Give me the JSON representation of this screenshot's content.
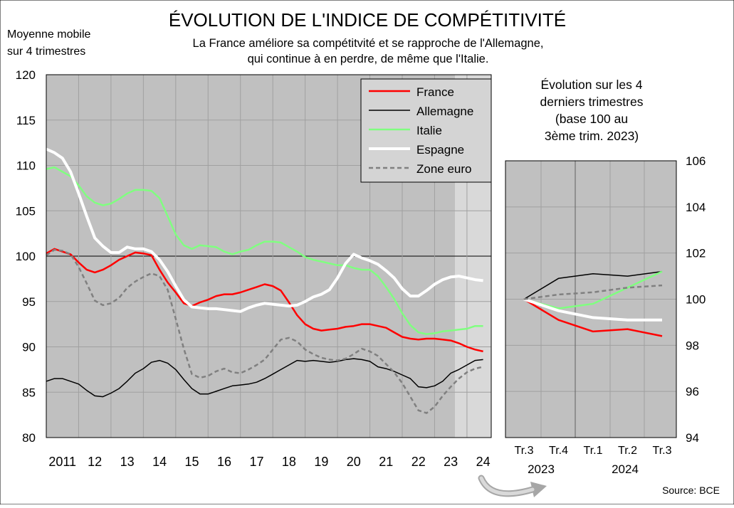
{
  "title": "ÉVOLUTION DE L'INDICE DE COMPÉTITIVITÉ",
  "subtitle_line1": "La France améliore sa compétitvité et se rapproche de l'Allemagne,",
  "subtitle_line2": "qui continue à en perdre, de même que l'Italie.",
  "source": "Source: BCE",
  "colors": {
    "france": "#ff0000",
    "allemagne": "#000000",
    "italie": "#80ff80",
    "espagne": "#ffffff",
    "zone_euro": "#808080",
    "plot_bg": "#c0c0c0",
    "shade_bg": "#d9d9d9"
  },
  "chart_data": [
    {
      "type": "line",
      "ylabel_line1": "Moyenne mobile",
      "ylabel_line2": "sur 4 trimestres",
      "ylim": [
        80,
        120
      ],
      "yticks": [
        80,
        85,
        90,
        95,
        100,
        105,
        110,
        115,
        120
      ],
      "xlim": [
        2011.0,
        2024.75
      ],
      "xtick_labels": [
        "2011",
        "12",
        "13",
        "14",
        "15",
        "16",
        "17",
        "18",
        "19",
        "20",
        "21",
        "22",
        "23",
        "24"
      ],
      "xtick_positions": [
        2011.5,
        2012.5,
        2013.5,
        2014.5,
        2015.5,
        2016.5,
        2017.5,
        2018.5,
        2019.5,
        2020.5,
        2021.5,
        2022.5,
        2023.5,
        2024.5
      ],
      "grid": true,
      "legend_position": "top-right",
      "series": [
        {
          "name": "France",
          "color": "#ff0000",
          "dash": "",
          "x": [
            2011.0,
            2011.25,
            2011.5,
            2011.75,
            2012.0,
            2012.25,
            2012.5,
            2012.75,
            2013.0,
            2013.25,
            2013.5,
            2013.75,
            2014.0,
            2014.25,
            2014.5,
            2014.75,
            2015.0,
            2015.25,
            2015.5,
            2015.75,
            2016.0,
            2016.25,
            2016.5,
            2016.75,
            2017.0,
            2017.25,
            2017.5,
            2017.75,
            2018.0,
            2018.25,
            2018.5,
            2018.75,
            2019.0,
            2019.25,
            2019.5,
            2019.75,
            2020.0,
            2020.25,
            2020.5,
            2020.75,
            2021.0,
            2021.25,
            2021.5,
            2021.75,
            2022.0,
            2022.25,
            2022.5,
            2022.75,
            2023.0,
            2023.25,
            2023.5,
            2023.75,
            2024.0,
            2024.25,
            2024.5
          ],
          "y": [
            100.3,
            100.8,
            100.5,
            100.2,
            99.3,
            98.5,
            98.2,
            98.5,
            99.0,
            99.6,
            100.0,
            100.4,
            100.3,
            100.1,
            98.5,
            97.1,
            96.0,
            94.8,
            94.5,
            94.9,
            95.2,
            95.6,
            95.8,
            95.8,
            96.0,
            96.3,
            96.6,
            96.9,
            96.7,
            96.2,
            94.9,
            93.5,
            92.5,
            92.0,
            91.8,
            91.9,
            92.0,
            92.2,
            92.3,
            92.5,
            92.5,
            92.3,
            92.1,
            91.6,
            91.1,
            90.9,
            90.8,
            90.9,
            90.9,
            90.8,
            90.7,
            90.4,
            90.0,
            89.7,
            89.5
          ]
        },
        {
          "name": "Allemagne",
          "color": "#000000",
          "dash": "",
          "x": [
            2011.0,
            2011.25,
            2011.5,
            2011.75,
            2012.0,
            2012.25,
            2012.5,
            2012.75,
            2013.0,
            2013.25,
            2013.5,
            2013.75,
            2014.0,
            2014.25,
            2014.5,
            2014.75,
            2015.0,
            2015.25,
            2015.5,
            2015.75,
            2016.0,
            2016.25,
            2016.5,
            2016.75,
            2017.0,
            2017.25,
            2017.5,
            2017.75,
            2018.0,
            2018.25,
            2018.5,
            2018.75,
            2019.0,
            2019.25,
            2019.5,
            2019.75,
            2020.0,
            2020.25,
            2020.5,
            2020.75,
            2021.0,
            2021.25,
            2021.5,
            2021.75,
            2022.0,
            2022.25,
            2022.5,
            2022.75,
            2023.0,
            2023.25,
            2023.5,
            2023.75,
            2024.0,
            2024.25,
            2024.5
          ],
          "y": [
            86.2,
            86.5,
            86.5,
            86.2,
            85.9,
            85.2,
            84.6,
            84.5,
            84.9,
            85.4,
            86.2,
            87.1,
            87.6,
            88.3,
            88.5,
            88.2,
            87.5,
            86.4,
            85.4,
            84.8,
            84.8,
            85.1,
            85.4,
            85.7,
            85.8,
            85.9,
            86.1,
            86.5,
            87.0,
            87.5,
            88.0,
            88.5,
            88.4,
            88.5,
            88.4,
            88.3,
            88.4,
            88.6,
            88.7,
            88.6,
            88.4,
            87.8,
            87.6,
            87.3,
            86.9,
            86.5,
            85.6,
            85.5,
            85.7,
            86.2,
            87.1,
            87.5,
            88.0,
            88.5,
            88.6
          ]
        },
        {
          "name": "Italie",
          "color": "#80ff80",
          "dash": "",
          "x": [
            2011.0,
            2011.25,
            2011.5,
            2011.75,
            2012.0,
            2012.25,
            2012.5,
            2012.75,
            2013.0,
            2013.25,
            2013.5,
            2013.75,
            2014.0,
            2014.25,
            2014.5,
            2014.75,
            2015.0,
            2015.25,
            2015.5,
            2015.75,
            2016.0,
            2016.25,
            2016.5,
            2016.75,
            2017.0,
            2017.25,
            2017.5,
            2017.75,
            2018.0,
            2018.25,
            2018.5,
            2018.75,
            2019.0,
            2019.25,
            2019.5,
            2019.75,
            2020.0,
            2020.25,
            2020.5,
            2020.75,
            2021.0,
            2021.25,
            2021.5,
            2021.75,
            2022.0,
            2022.25,
            2022.5,
            2022.75,
            2023.0,
            2023.25,
            2023.5,
            2023.75,
            2024.0,
            2024.25,
            2024.5
          ],
          "y": [
            109.6,
            109.8,
            109.3,
            108.8,
            107.8,
            106.6,
            105.9,
            105.6,
            105.8,
            106.3,
            106.9,
            107.3,
            107.3,
            107.2,
            106.4,
            104.4,
            102.4,
            101.2,
            100.8,
            101.2,
            101.1,
            101.0,
            100.5,
            100.2,
            100.5,
            100.7,
            101.2,
            101.6,
            101.6,
            101.5,
            101.0,
            100.5,
            99.9,
            99.6,
            99.4,
            99.2,
            99.0,
            99.0,
            98.7,
            98.5,
            98.5,
            97.8,
            96.6,
            95.3,
            93.7,
            92.4,
            91.6,
            91.4,
            91.5,
            91.7,
            91.8,
            91.9,
            92.0,
            92.3,
            92.3
          ]
        },
        {
          "name": "Espagne",
          "color": "#ffffff",
          "dash": "",
          "x": [
            2011.0,
            2011.25,
            2011.5,
            2011.75,
            2012.0,
            2012.25,
            2012.5,
            2012.75,
            2013.0,
            2013.25,
            2013.5,
            2013.75,
            2014.0,
            2014.25,
            2014.5,
            2014.75,
            2015.0,
            2015.25,
            2015.5,
            2015.75,
            2016.0,
            2016.25,
            2016.5,
            2016.75,
            2017.0,
            2017.25,
            2017.5,
            2017.75,
            2018.0,
            2018.25,
            2018.5,
            2018.75,
            2019.0,
            2019.25,
            2019.5,
            2019.75,
            2020.0,
            2020.25,
            2020.5,
            2020.75,
            2021.0,
            2021.25,
            2021.5,
            2021.75,
            2022.0,
            2022.25,
            2022.5,
            2022.75,
            2023.0,
            2023.25,
            2023.5,
            2023.75,
            2024.0,
            2024.25,
            2024.5
          ],
          "y": [
            111.8,
            111.4,
            110.8,
            109.3,
            106.9,
            104.4,
            102.0,
            101.1,
            100.4,
            100.4,
            101.0,
            100.8,
            100.8,
            100.5,
            99.6,
            98.3,
            96.7,
            95.2,
            94.4,
            94.3,
            94.2,
            94.2,
            94.1,
            94.0,
            93.9,
            94.3,
            94.6,
            94.8,
            94.7,
            94.6,
            94.5,
            94.6,
            95.0,
            95.5,
            95.8,
            96.3,
            97.6,
            99.2,
            100.2,
            99.8,
            99.5,
            99.1,
            98.4,
            97.6,
            96.4,
            95.6,
            95.6,
            96.2,
            96.9,
            97.4,
            97.7,
            97.8,
            97.6,
            97.4,
            97.3
          ]
        },
        {
          "name": "Zone euro",
          "color": "#808080",
          "dash": "6,4",
          "x": [
            2011.0,
            2011.25,
            2011.5,
            2011.75,
            2012.0,
            2012.25,
            2012.5,
            2012.75,
            2013.0,
            2013.25,
            2013.5,
            2013.75,
            2014.0,
            2014.25,
            2014.5,
            2014.75,
            2015.0,
            2015.25,
            2015.5,
            2015.75,
            2016.0,
            2016.25,
            2016.5,
            2016.75,
            2017.0,
            2017.25,
            2017.5,
            2017.75,
            2018.0,
            2018.25,
            2018.5,
            2018.75,
            2019.0,
            2019.25,
            2019.5,
            2019.75,
            2020.0,
            2020.25,
            2020.5,
            2020.75,
            2021.0,
            2021.25,
            2021.5,
            2021.75,
            2022.0,
            2022.25,
            2022.5,
            2022.75,
            2023.0,
            2023.25,
            2023.5,
            2023.75,
            2024.0,
            2024.25,
            2024.5
          ],
          "y": [
            100.1,
            100.7,
            100.6,
            100.2,
            98.8,
            97.0,
            95.1,
            94.6,
            94.8,
            95.4,
            96.5,
            97.2,
            97.7,
            98.1,
            97.8,
            96.3,
            93.1,
            89.8,
            87.0,
            86.6,
            86.8,
            87.3,
            87.6,
            87.2,
            87.1,
            87.5,
            88.0,
            88.6,
            89.7,
            90.8,
            91.0,
            90.6,
            89.7,
            89.2,
            88.8,
            88.6,
            88.5,
            88.7,
            89.2,
            89.8,
            89.5,
            89.0,
            88.1,
            87.2,
            86.0,
            84.5,
            83.0,
            82.7,
            83.4,
            84.6,
            85.6,
            86.5,
            87.2,
            87.6,
            87.8
          ]
        }
      ],
      "legend_entries": [
        "France",
        "Allemagne",
        "Italie",
        "Espagne",
        "Zone euro"
      ]
    },
    {
      "type": "line",
      "title_line1": "Évolution sur les 4",
      "title_line2": "derniers trimestres",
      "title_line3": "(base 100 au",
      "title_line4": "3ème trim. 2023)",
      "ylim": [
        94,
        106
      ],
      "yticks": [
        94,
        96,
        98,
        100,
        102,
        104,
        106
      ],
      "categories": [
        "Tr.3",
        "Tr.4",
        "Tr.1",
        "Tr.2",
        "Tr.3"
      ],
      "year_labels": [
        "2023",
        "2024"
      ],
      "grid": true,
      "series": [
        {
          "name": "France",
          "color": "#ff0000",
          "dash": "",
          "values": [
            100.0,
            99.1,
            98.6,
            98.7,
            98.4
          ]
        },
        {
          "name": "Allemagne",
          "color": "#000000",
          "dash": "",
          "values": [
            100.0,
            100.9,
            101.1,
            101.0,
            101.2
          ]
        },
        {
          "name": "Italie",
          "color": "#80ff80",
          "dash": "",
          "values": [
            100.0,
            99.6,
            99.8,
            100.5,
            101.2
          ]
        },
        {
          "name": "Espagne",
          "color": "#ffffff",
          "dash": "",
          "values": [
            100.0,
            99.5,
            99.2,
            99.1,
            99.1
          ]
        },
        {
          "name": "Zone euro",
          "color": "#808080",
          "dash": "6,4",
          "values": [
            100.0,
            100.2,
            100.3,
            100.5,
            100.6
          ]
        }
      ]
    }
  ]
}
